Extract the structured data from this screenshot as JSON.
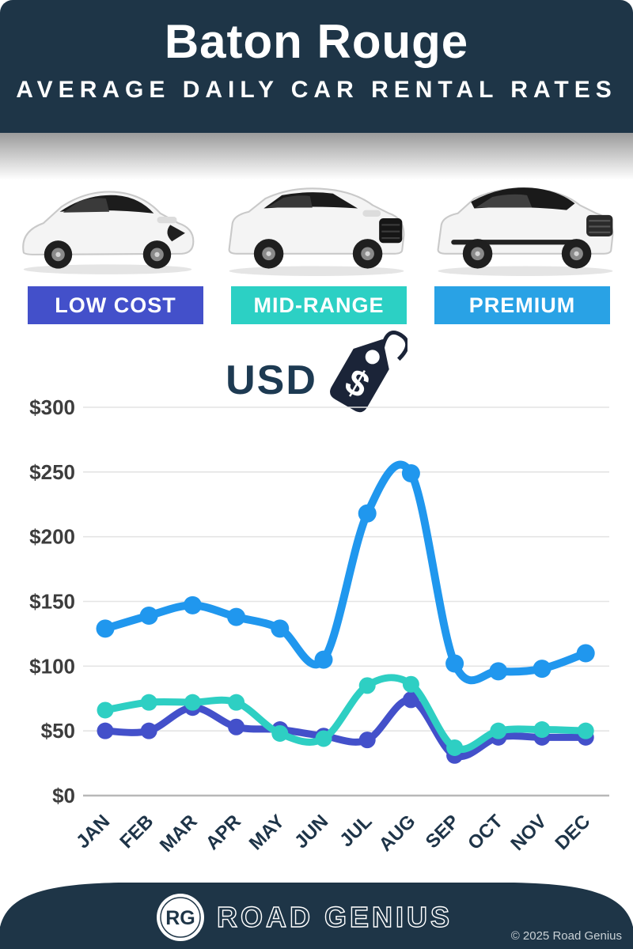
{
  "header": {
    "title": "Baton Rouge",
    "subtitle": "AVERAGE DAILY CAR RENTAL RATES"
  },
  "categories": [
    {
      "label": "LOW COST",
      "color": "#4350ca"
    },
    {
      "label": "MID-RANGE",
      "color": "#2cd0c4"
    },
    {
      "label": "PREMIUM",
      "color": "#29a2e5"
    }
  ],
  "currency": {
    "label": "USD",
    "tag_icon": "price-tag-dollar-icon",
    "tag_symbol": "$"
  },
  "chart_data": {
    "type": "line",
    "unit": "USD",
    "categories": [
      "JAN",
      "FEB",
      "MAR",
      "APR",
      "MAY",
      "JUN",
      "JUL",
      "AUG",
      "SEP",
      "OCT",
      "NOV",
      "DEC"
    ],
    "series": [
      {
        "name": "LOW COST",
        "color": "#4350ca",
        "values": [
          50,
          50,
          68,
          53,
          51,
          46,
          43,
          74,
          31,
          45,
          45,
          45
        ]
      },
      {
        "name": "MID-RANGE",
        "color": "#2ecfc3",
        "values": [
          66,
          72,
          72,
          72,
          48,
          44,
          85,
          86,
          37,
          50,
          51,
          50
        ]
      },
      {
        "name": "PREMIUM",
        "color": "#2097ee",
        "values": [
          129,
          139,
          147,
          138,
          129,
          105,
          218,
          249,
          102,
          96,
          98,
          110
        ]
      }
    ],
    "ylim": [
      0,
      300
    ],
    "ytick_step": 50,
    "ytick_labels": [
      "$0",
      "$50",
      "$100",
      "$150",
      "$200",
      "$250",
      "$300"
    ],
    "grid": true,
    "legend_position": "none"
  },
  "footer": {
    "logo_text": "RG",
    "brand": "ROAD GENIUS",
    "copyright": "© 2025 Road Genius"
  },
  "colors": {
    "header_bg": "#1e3547",
    "grid_line": "#e4e4e4",
    "axis_line": "#b8b8b8",
    "y_label": "#3d3d3d",
    "x_label": "#1e3448",
    "usd_text": "#1d3a52",
    "tag_icon": "#1b2438",
    "footer_bg": "#1e3547"
  }
}
